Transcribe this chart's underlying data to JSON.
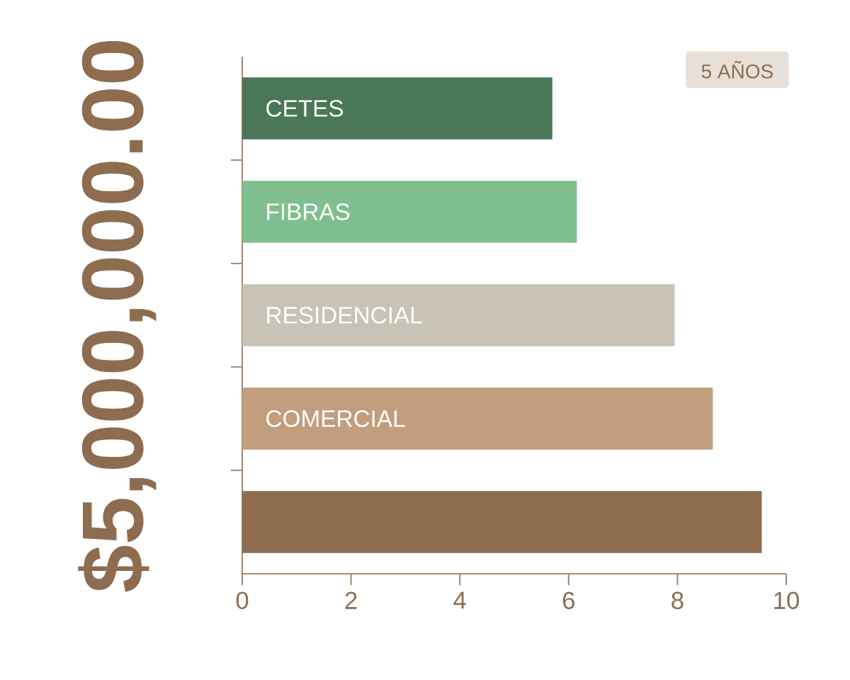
{
  "chart_data": {
    "type": "bar",
    "orientation": "horizontal",
    "ylabel": "$5,000,000.00",
    "categories": [
      "CETES",
      "FIBRAS",
      "RESIDENCIAL",
      "COMERCIAL",
      null
    ],
    "values": [
      5.7,
      6.15,
      7.95,
      8.65,
      9.55
    ],
    "colors": [
      "#4a7757",
      "#7fbf8f",
      "#c9c2b6",
      "#c29e7e",
      "#8e6c50"
    ],
    "xlim": [
      0,
      10
    ],
    "xticks": [
      0,
      2,
      4,
      6,
      8,
      10
    ],
    "annotations": [
      "5 AÑOS"
    ],
    "grid": false
  }
}
